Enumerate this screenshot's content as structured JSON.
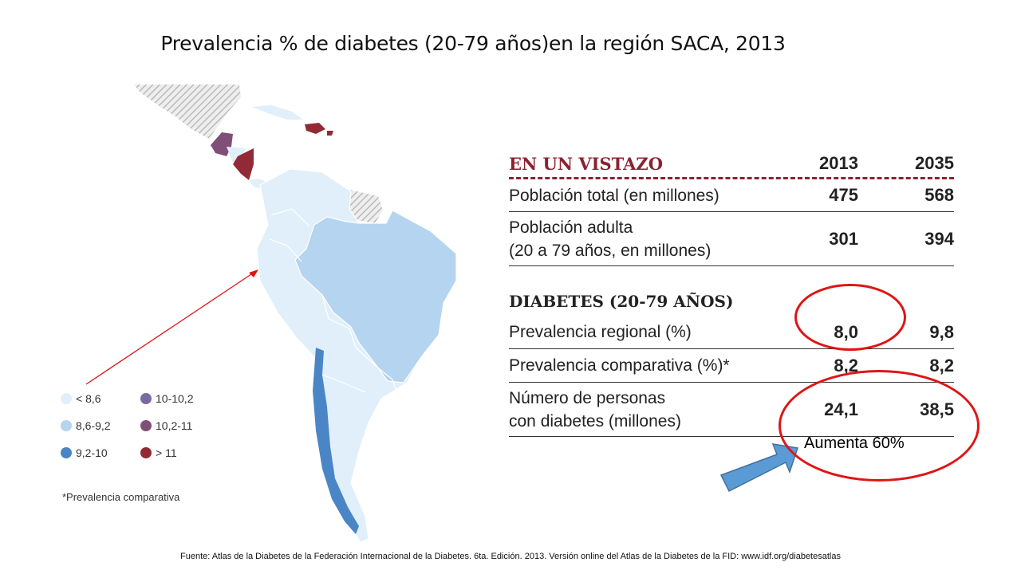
{
  "title": "Prevalencia % de diabetes (20-79 años)en la región SACA, 2013",
  "legend": {
    "items": [
      {
        "label": "< 8,6",
        "color": "#e0effa"
      },
      {
        "label": "8,6-9,2",
        "color": "#b4d4ef"
      },
      {
        "label": "9,2-10",
        "color": "#4a86c6"
      },
      {
        "label": "10-10,2",
        "color": "#7a6aa3"
      },
      {
        "label": "10,2-11",
        "color": "#804f78"
      },
      {
        "label": "> 11",
        "color": "#922a35"
      }
    ],
    "note": "*Prevalencia comparativa"
  },
  "glance": {
    "heading": "EN UN VISTAZO",
    "year_a": "2013",
    "year_b": "2035",
    "rows": [
      {
        "label_1": "Población total (en millones)",
        "label_2": "",
        "a": "475",
        "b": "568"
      },
      {
        "label_1": "Población adulta",
        "label_2": "(20 a 79 años, en millones)",
        "a": "301",
        "b": "394"
      }
    ],
    "section": "DIABETES (20-79 AÑOS)",
    "diabetes_rows": [
      {
        "label_1": "Prevalencia regional (%)",
        "label_2": "",
        "a": "8,0",
        "b": "9,8"
      },
      {
        "label_1": "Prevalencia comparativa (%)*",
        "label_2": "",
        "a": "8,2",
        "b": "8,2"
      },
      {
        "label_1": "Número de personas",
        "label_2": "con diabetes (millones)",
        "a": "24,1",
        "b": "38,5"
      }
    ],
    "accent_color": "#8c2231"
  },
  "annotation": {
    "label": "Aumenta 60%",
    "ellipse_color": "#e01414",
    "arrow_color": "#5b9bd5"
  },
  "map": {
    "region_colors": {
      "light": "#e0effa",
      "mid": "#b4d4ef",
      "dark_blue": "#4a86c6",
      "purple": "#804f78",
      "red": "#922a35",
      "hatched": "#c8c8c8"
    }
  },
  "source": "Fuente: Atlas de la Diabetes de la Federación Internacional de la Diabetes. 6ta. Edición. 2013. Versión online del Atlas de la Diabetes de la FID: www.idf.org/diabetesatlas"
}
